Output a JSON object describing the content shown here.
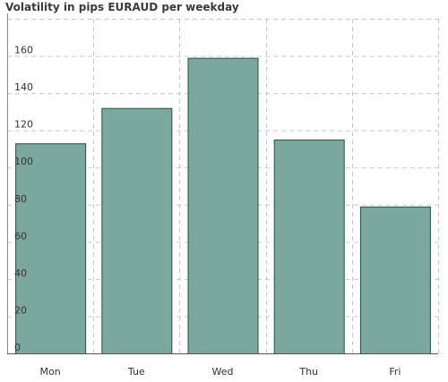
{
  "chart_data": {
    "type": "bar",
    "title": "Volatility in pips EURAUD per weekday",
    "categories": [
      "Mon",
      "Tue",
      "Wed",
      "Thu",
      "Fri"
    ],
    "values": [
      113,
      132,
      159,
      115,
      79
    ],
    "ylim": [
      0,
      180
    ],
    "yticks": [
      0,
      20,
      40,
      60,
      80,
      100,
      120,
      140,
      160
    ],
    "xlabel": "",
    "ylabel": "",
    "grid": true,
    "colors": {
      "bar_fill": "#7ba89e",
      "bar_stroke": "#1f5247",
      "grid": "#c8c8c8",
      "axis": "#888888"
    }
  }
}
